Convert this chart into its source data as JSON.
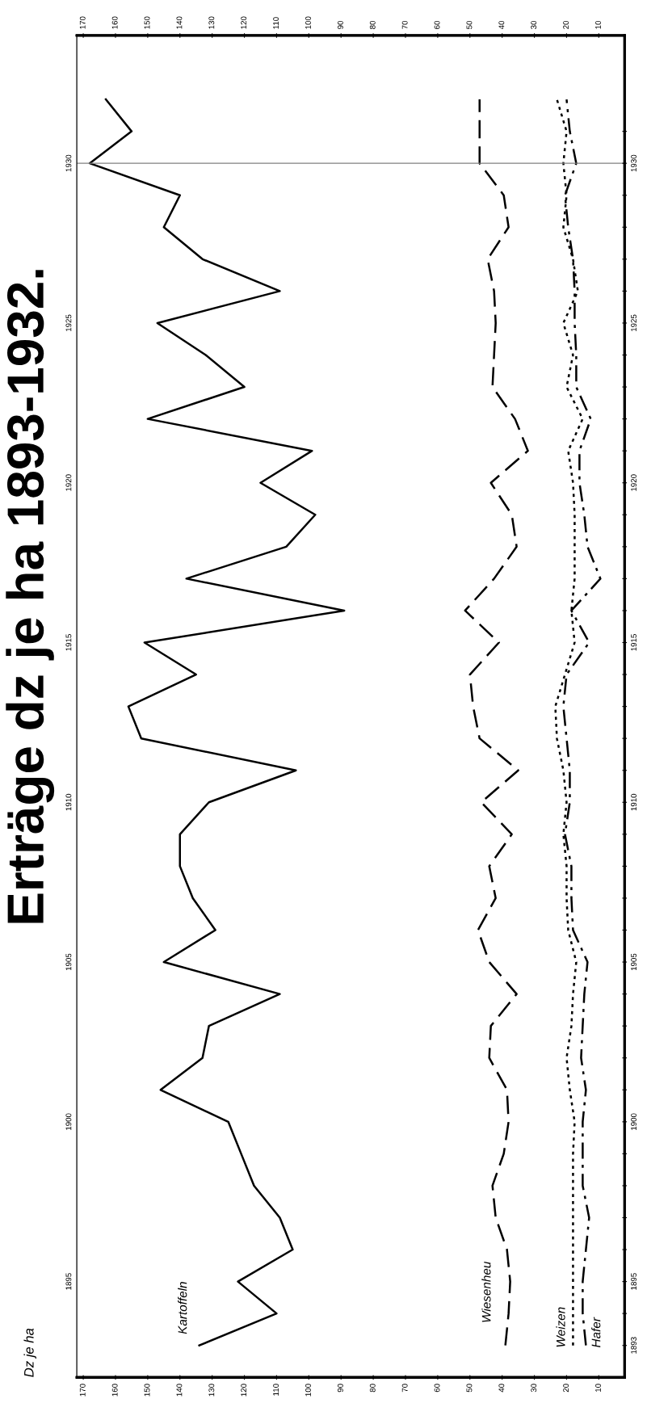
{
  "chart_data": {
    "type": "line",
    "orientation": "horizontal",
    "title": "Erträge dz je ha 1893-1932.",
    "annotations": [
      "Dz je ha"
    ],
    "x": [
      1893,
      1894,
      1895,
      1896,
      1897,
      1898,
      1899,
      1900,
      1901,
      1902,
      1903,
      1904,
      1905,
      1906,
      1907,
      1908,
      1909,
      1910,
      1911,
      1912,
      1913,
      1914,
      1915,
      1916,
      1917,
      1918,
      1919,
      1920,
      1921,
      1922,
      1923,
      1924,
      1925,
      1926,
      1927,
      1928,
      1929,
      1930,
      1931,
      1932
    ],
    "series": [
      {
        "name": "Kartoffeln",
        "color": "#000000",
        "line_style": "solid",
        "values": [
          134,
          110,
          122,
          105,
          109,
          117,
          121,
          125,
          146,
          133,
          131,
          109,
          145,
          129,
          136,
          140,
          140,
          131,
          104,
          152,
          156,
          135,
          151,
          89,
          138,
          107,
          98,
          115,
          99,
          150,
          120,
          132,
          147,
          109,
          133,
          145,
          140,
          168,
          155,
          163
        ]
      },
      {
        "name": "Wiesenheu",
        "color": "#000000",
        "line_style": "dashed",
        "values": [
          39,
          38,
          37.5,
          38.5,
          42,
          43,
          39.5,
          38,
          38.5,
          44,
          43.5,
          35.5,
          44,
          47.5,
          42,
          44,
          37,
          46.5,
          35,
          47,
          49,
          50,
          41,
          51.5,
          42.5,
          35.5,
          37,
          43.5,
          32,
          36,
          43,
          42.5,
          42,
          42.5,
          44.5,
          38,
          39.5,
          47,
          47,
          47
        ]
      },
      {
        "name": "Weizen",
        "color": "#000000",
        "line_style": "dotted",
        "values": [
          18,
          18,
          18,
          18,
          18,
          18,
          18,
          17.5,
          19,
          20,
          18.5,
          18,
          17,
          19.5,
          20,
          20,
          21,
          20,
          21,
          23,
          23.5,
          20.5,
          17.5,
          18.5,
          17.5,
          17.5,
          17.5,
          18,
          19.5,
          15,
          20,
          18,
          21,
          16.5,
          18,
          21,
          20,
          21,
          20,
          23
        ]
      },
      {
        "name": "Hafer",
        "color": "#000000",
        "line_style": "dashdot",
        "values": [
          14,
          15,
          15,
          14,
          13,
          15,
          15,
          15,
          14,
          15.5,
          15,
          14.5,
          13.5,
          18,
          18.5,
          18.5,
          20.5,
          19,
          19,
          20,
          21,
          20,
          13,
          18.5,
          9.5,
          13.5,
          14.5,
          16,
          16,
          12.5,
          17,
          17,
          17.5,
          17.5,
          18,
          19.5,
          20.5,
          17,
          19,
          20
        ]
      }
    ],
    "xlim": [
      172,
      2
    ],
    "xticks": [
      10,
      20,
      30,
      40,
      50,
      60,
      70,
      80,
      90,
      100,
      110,
      120,
      130,
      140,
      150,
      160,
      170
    ],
    "x2lim": [
      172,
      2
    ],
    "x2ticks": [
      10,
      20,
      30,
      40,
      50,
      60,
      70,
      80,
      90,
      100,
      110,
      120,
      130,
      140,
      150,
      160,
      170
    ],
    "ylim": [
      1892,
      1934
    ],
    "yticks": [
      1895,
      1900,
      1905,
      1910,
      1915,
      1920,
      1925,
      1930
    ],
    "y2lim": [
      1892,
      1934
    ],
    "y2ticks": [
      1893,
      {
        "value": 1894,
        "label": null
      },
      1895,
      {
        "value": 1896,
        "label": null
      },
      {
        "value": 1897,
        "label": null
      },
      {
        "value": 1898,
        "label": null
      },
      {
        "value": 1899,
        "label": null
      },
      1900,
      {
        "value": 1901,
        "label": null
      },
      {
        "value": 1902,
        "label": null
      },
      {
        "value": 1903,
        "label": null
      },
      {
        "value": 1904,
        "label": null
      },
      1905,
      {
        "value": 1906,
        "label": null
      },
      {
        "value": 1907,
        "label": null
      },
      {
        "value": 1908,
        "label": null
      },
      {
        "value": 1909,
        "label": null
      },
      1910,
      {
        "value": 1911,
        "label": null
      },
      {
        "value": 1912,
        "label": null
      },
      {
        "value": 1913,
        "label": null
      },
      {
        "value": 1914,
        "label": null
      },
      1915,
      {
        "value": 1916,
        "label": null
      },
      {
        "value": 1917,
        "label": null
      },
      {
        "value": 1918,
        "label": null
      },
      {
        "value": 1919,
        "label": null
      },
      1920,
      {
        "value": 1921,
        "label": null
      },
      {
        "value": 1922,
        "label": null
      },
      {
        "value": 1923,
        "label": null
      },
      {
        "value": 1924,
        "label": null
      },
      1925,
      {
        "value": 1926,
        "label": null
      },
      {
        "value": 1927,
        "label": null
      },
      {
        "value": 1928,
        "label": null
      },
      {
        "value": 1929,
        "label": null
      },
      1930,
      {
        "value": 1931,
        "label": null
      }
    ],
    "ref_lines": [
      {
        "axis": "y",
        "value": 1930,
        "color": "#808080"
      }
    ],
    "grid": false,
    "legend": false
  }
}
